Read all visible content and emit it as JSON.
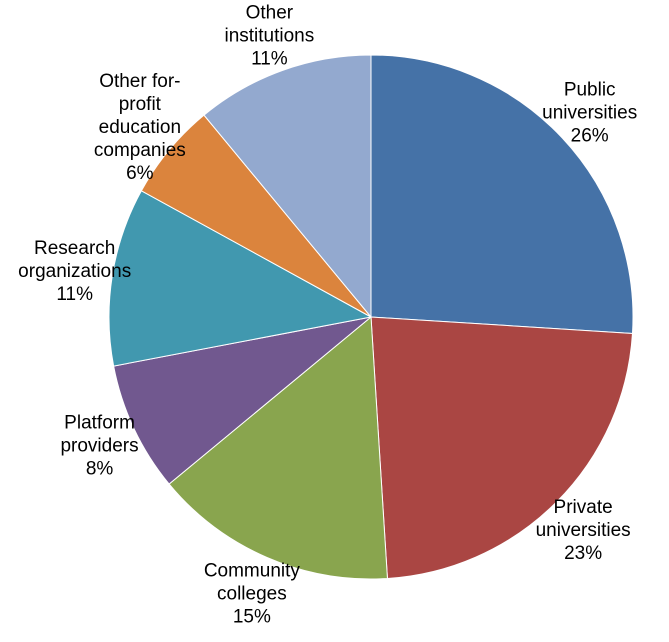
{
  "chart_data": {
    "type": "pie",
    "title": "",
    "start_angle_deg": 0,
    "direction": "clockwise",
    "legend": "none",
    "slices": [
      {
        "label_lines": [
          "Public",
          "universities"
        ],
        "value_label": "26%",
        "value": 26,
        "color": "#4572A7"
      },
      {
        "label_lines": [
          "Private",
          "universities"
        ],
        "value_label": "23%",
        "value": 23,
        "color": "#AA4643"
      },
      {
        "label_lines": [
          "Community",
          "colleges"
        ],
        "value_label": "15%",
        "value": 15,
        "color": "#89A54E"
      },
      {
        "label_lines": [
          "Platform",
          "providers"
        ],
        "value_label": "8%",
        "value": 8,
        "color": "#71588F"
      },
      {
        "label_lines": [
          "Research",
          "organizations"
        ],
        "value_label": "11%",
        "value": 11,
        "color": "#4198AF"
      },
      {
        "label_lines": [
          "Other for-",
          "profit",
          "education",
          "companies"
        ],
        "value_label": "6%",
        "value": 6,
        "color": "#DB843D"
      },
      {
        "label_lines": [
          "Other",
          "institutions"
        ],
        "value_label": "11%",
        "value": 11,
        "color": "#93A9CF"
      }
    ]
  }
}
